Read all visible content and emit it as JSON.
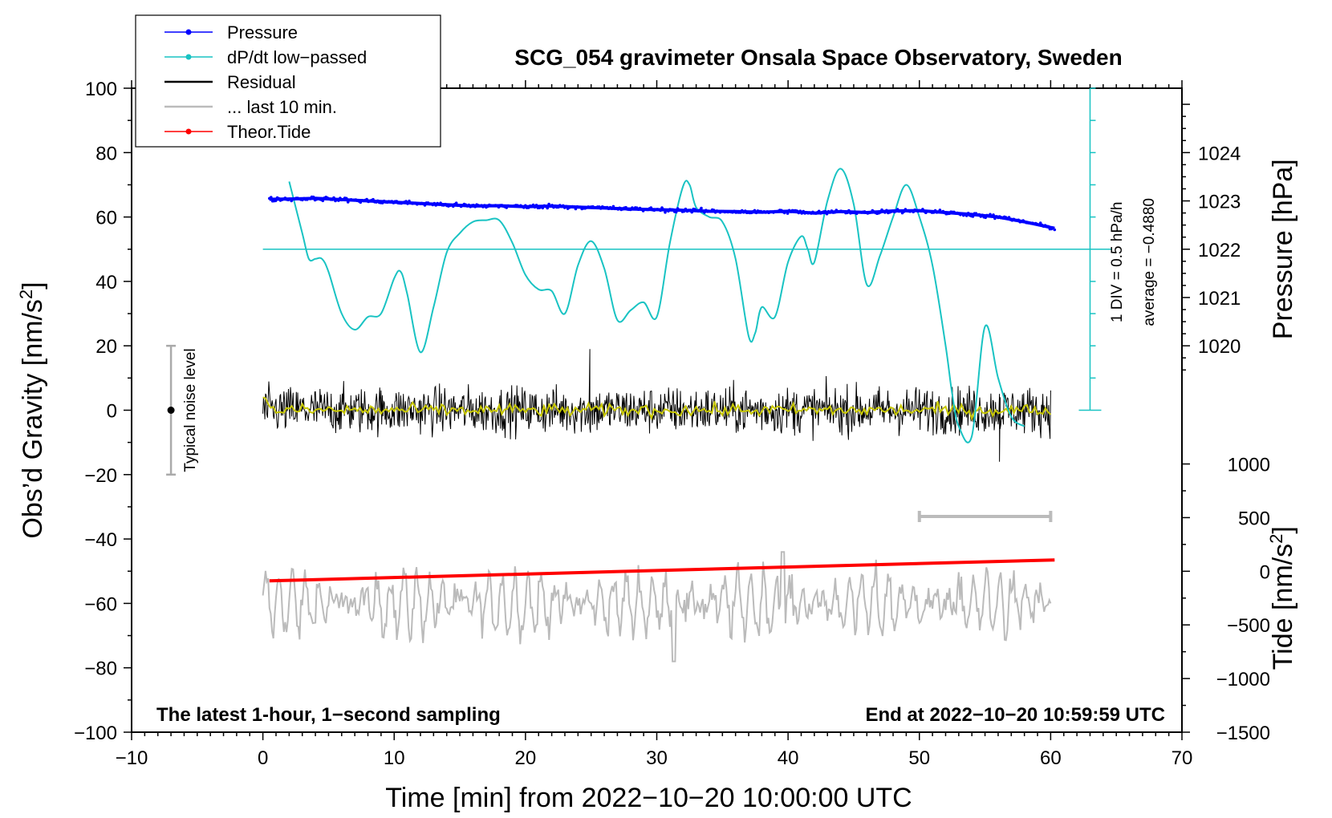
{
  "chart_data": {
    "type": "line",
    "title": "SCG_054 gravimeter Onsala Space Observatory, Sweden",
    "xlabel": "Time [min] from 2022−10−20 10:00:00 UTC",
    "ylabel_prefix": "Obs’d Gravity [nm/s",
    "ylabel_exp": "2",
    "ylabel_suffix": "]",
    "xlim": [
      -10,
      70
    ],
    "ylim": [
      -100,
      100
    ],
    "x_ticks": [
      -10,
      0,
      10,
      20,
      30,
      40,
      50,
      60,
      70
    ],
    "x_tick_labels": [
      "−10",
      "0",
      "10",
      "20",
      "30",
      "40",
      "50",
      "60",
      "70"
    ],
    "y_ticks": [
      -100,
      -80,
      -60,
      -40,
      -20,
      0,
      20,
      40,
      60,
      80,
      100
    ],
    "y_tick_labels": [
      "−100",
      "−80",
      "−60",
      "−40",
      "−20",
      "0",
      "20",
      "40",
      "60",
      "80",
      "100"
    ],
    "pressure_axis": {
      "label": "Pressure [hPa]",
      "ticks": [
        1020,
        1021,
        1022,
        1023,
        1024
      ],
      "tick_labels": [
        "1020",
        "1021",
        "1022",
        "1023",
        "1024"
      ],
      "gravity_equivalent": {
        "1020": 20,
        "1022": 50,
        "1024": 80
      }
    },
    "tide_axis": {
      "label_prefix": "Tide [nm/s",
      "label_exp": "2",
      "label_suffix": "]",
      "ticks": [
        1000,
        500,
        0,
        -500,
        -1000,
        -1500
      ],
      "tick_labels": [
        "1000",
        "500",
        "0",
        "−500",
        "−1000",
        "−1500"
      ],
      "gravity_equivalent": {
        "1000": -16.7,
        "-1500": -100
      }
    },
    "dpdt_scale": {
      "axis_x": 63,
      "top_y": 100,
      "bottom_y": 0,
      "zero_line_y": 50,
      "div_label": "1 DIV = 0.5 hPa/h",
      "average_label": "average = −0.4880"
    },
    "noise_bar": {
      "x": -7,
      "center": 0,
      "low": -20,
      "high": 20,
      "label": "Typical noise level"
    },
    "last10_marker": {
      "x_start": 50,
      "x_end": 60,
      "y": -33
    },
    "annotations": {
      "bottom_left": "The latest 1-hour, 1−second sampling",
      "bottom_right": "End at 2022−10−20 10:59:59 UTC"
    },
    "legend": [
      {
        "label": "Pressure",
        "color": "#0000ff",
        "marker": true
      },
      {
        "label": "dP/dt low−passed",
        "color": "#19c3c3",
        "marker": true
      },
      {
        "label": "Residual",
        "color": "#000000",
        "marker": false
      },
      {
        "label": "... last 10 min.",
        "color": "#bbbbbb",
        "marker": false
      },
      {
        "label": "Theor.Tide",
        "color": "#ff0000",
        "marker": true
      }
    ],
    "series": [
      {
        "name": "Pressure",
        "color": "#0000ff",
        "x": [
          0.5,
          2,
          4,
          6,
          8,
          10,
          12,
          14,
          16,
          18,
          20,
          22,
          24,
          26,
          28,
          30,
          32,
          34,
          36,
          38,
          40,
          42,
          44,
          46,
          48,
          50,
          52,
          54,
          56,
          58,
          60.3
        ],
        "y": [
          65.5,
          65.6,
          65.8,
          65.4,
          65.0,
          64.6,
          64.2,
          63.8,
          63.4,
          63.5,
          63.2,
          63.4,
          63.1,
          62.8,
          62.5,
          62.3,
          62.1,
          61.8,
          61.7,
          61.5,
          61.8,
          61.2,
          61.7,
          61.4,
          61.9,
          62.0,
          61.4,
          60.8,
          60.0,
          58.5,
          56.5
        ]
      },
      {
        "name": "dP/dt low−passed",
        "color": "#19c3c3",
        "x": [
          2,
          3,
          3.5,
          4,
          4.5,
          5,
          6,
          7,
          8,
          9,
          10,
          10.5,
          11,
          12,
          13,
          14,
          15,
          16,
          17,
          18,
          19,
          20,
          21,
          22,
          23,
          24,
          25,
          26,
          27,
          28,
          29,
          30,
          31,
          32,
          32.5,
          33,
          34,
          35,
          36,
          37,
          37.5,
          38,
          39,
          40,
          41,
          41.5,
          42,
          43,
          44,
          45,
          46,
          47,
          48,
          49,
          50,
          51,
          52,
          52.5,
          53,
          54,
          55,
          56,
          57,
          58
        ],
        "y": [
          71,
          55,
          47,
          47,
          47,
          43,
          30,
          25,
          29,
          30,
          41,
          43,
          36,
          18,
          32,
          49,
          55,
          58.5,
          59,
          59,
          52,
          42,
          37.5,
          37,
          30,
          45,
          52.5,
          44,
          28,
          31,
          33.5,
          29,
          52,
          69.5,
          70,
          63,
          60,
          58.5,
          47,
          23,
          24,
          32,
          29,
          46,
          54,
          50,
          46,
          65,
          75,
          64,
          39,
          48,
          60,
          70,
          60,
          45,
          20,
          5,
          -5,
          -8,
          26,
          10,
          -2,
          -5
        ]
      },
      {
        "name": "Residual",
        "color": "#000000",
        "x_range": [
          0,
          60
        ],
        "approx_amplitude": 9,
        "approx_extremes": [
          -16,
          19
        ]
      },
      {
        "name": "... last 10 min.",
        "color": "#bbbbbb",
        "x_range": [
          0,
          60
        ],
        "approx_center": -60,
        "approx_extremes": [
          -78,
          -44
        ]
      },
      {
        "name": "Theor.Tide",
        "color": "#ff0000",
        "x": [
          0.5,
          60.3
        ],
        "y": [
          -53,
          -46.5
        ]
      }
    ]
  }
}
